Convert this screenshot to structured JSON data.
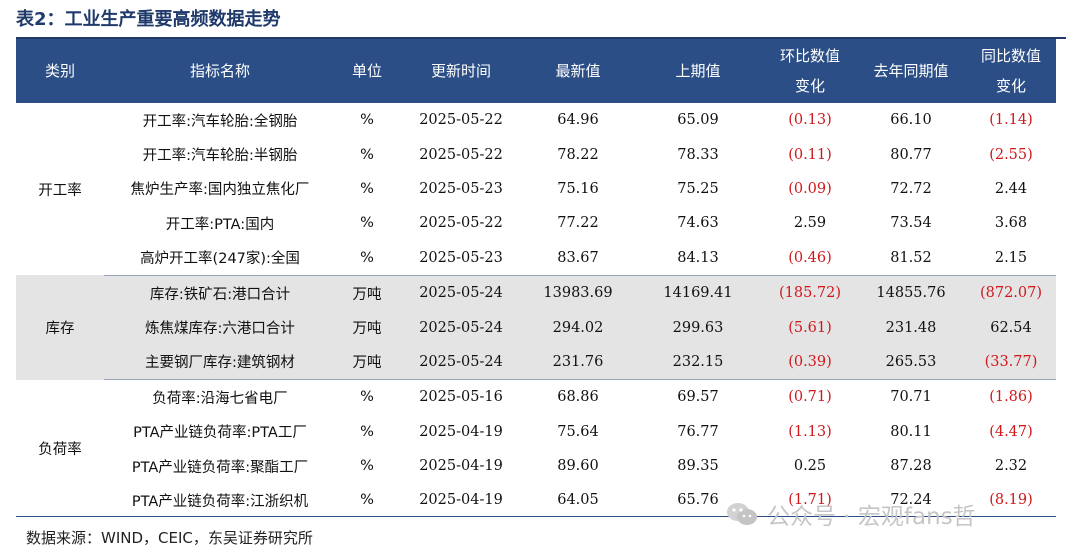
{
  "title": "表2：工业生产重要高频数据走势",
  "headers": {
    "category": "类别",
    "indicator": "指标名称",
    "unit": "单位",
    "update_time": "更新时间",
    "latest": "最新值",
    "previous": "上期值",
    "mom_change_line1": "环比数值",
    "mom_change_line2": "变化",
    "last_year": "去年同期值",
    "yoy_change_line1": "同比数值",
    "yoy_change_line2": "变化"
  },
  "groups": [
    {
      "category": "开工率",
      "shaded": false,
      "rows": [
        {
          "indicator": "开工率:汽车轮胎:全钢胎",
          "unit": "%",
          "date": "2025-05-22",
          "latest": "64.96",
          "previous": "65.09",
          "mom": "(0.13)",
          "mom_neg": true,
          "last_year": "66.10",
          "yoy": "(1.14)",
          "yoy_neg": true
        },
        {
          "indicator": "开工率:汽车轮胎:半钢胎",
          "unit": "%",
          "date": "2025-05-22",
          "latest": "78.22",
          "previous": "78.33",
          "mom": "(0.11)",
          "mom_neg": true,
          "last_year": "80.77",
          "yoy": "(2.55)",
          "yoy_neg": true
        },
        {
          "indicator": "焦炉生产率:国内独立焦化厂",
          "unit": "%",
          "date": "2025-05-23",
          "latest": "75.16",
          "previous": "75.25",
          "mom": "(0.09)",
          "mom_neg": true,
          "last_year": "72.72",
          "yoy": "2.44",
          "yoy_neg": false
        },
        {
          "indicator": "开工率:PTA:国内",
          "unit": "%",
          "date": "2025-05-22",
          "latest": "77.22",
          "previous": "74.63",
          "mom": "2.59",
          "mom_neg": false,
          "last_year": "73.54",
          "yoy": "3.68",
          "yoy_neg": false
        },
        {
          "indicator": "高炉开工率(247家):全国",
          "unit": "%",
          "date": "2025-05-23",
          "latest": "83.67",
          "previous": "84.13",
          "mom": "(0.46)",
          "mom_neg": true,
          "last_year": "81.52",
          "yoy": "2.15",
          "yoy_neg": false
        }
      ]
    },
    {
      "category": "库存",
      "shaded": true,
      "rows": [
        {
          "indicator": "库存:铁矿石:港口合计",
          "unit": "万吨",
          "date": "2025-05-24",
          "latest": "13983.69",
          "previous": "14169.41",
          "mom": "(185.72)",
          "mom_neg": true,
          "last_year": "14855.76",
          "yoy": "(872.07)",
          "yoy_neg": true
        },
        {
          "indicator": "炼焦煤库存:六港口合计",
          "unit": "万吨",
          "date": "2025-05-24",
          "latest": "294.02",
          "previous": "299.63",
          "mom": "(5.61)",
          "mom_neg": true,
          "last_year": "231.48",
          "yoy": "62.54",
          "yoy_neg": false
        },
        {
          "indicator": "主要钢厂库存:建筑钢材",
          "unit": "万吨",
          "date": "2025-05-24",
          "latest": "231.76",
          "previous": "232.15",
          "mom": "(0.39)",
          "mom_neg": true,
          "last_year": "265.53",
          "yoy": "(33.77)",
          "yoy_neg": true
        }
      ]
    },
    {
      "category": "负荷率",
      "shaded": false,
      "rows": [
        {
          "indicator": "负荷率:沿海七省电厂",
          "unit": "%",
          "date": "2025-05-16",
          "latest": "68.86",
          "previous": "69.57",
          "mom": "(0.71)",
          "mom_neg": true,
          "last_year": "70.71",
          "yoy": "(1.86)",
          "yoy_neg": true
        },
        {
          "indicator": "PTA产业链负荷率:PTA工厂",
          "unit": "%",
          "date": "2025-04-19",
          "latest": "75.64",
          "previous": "76.77",
          "mom": "(1.13)",
          "mom_neg": true,
          "last_year": "80.11",
          "yoy": "(4.47)",
          "yoy_neg": true
        },
        {
          "indicator": "PTA产业链负荷率:聚酯工厂",
          "unit": "%",
          "date": "2025-04-19",
          "latest": "89.60",
          "previous": "89.35",
          "mom": "0.25",
          "mom_neg": false,
          "last_year": "87.28",
          "yoy": "2.32",
          "yoy_neg": false
        },
        {
          "indicator": "PTA产业链负荷率:江浙织机",
          "unit": "%",
          "date": "2025-04-19",
          "latest": "64.05",
          "previous": "65.76",
          "mom": "(1.71)",
          "mom_neg": true,
          "last_year": "72.24",
          "yoy": "(8.19)",
          "yoy_neg": true
        }
      ]
    }
  ],
  "source": "数据来源：WIND，CEIC，东吴证券研究所",
  "watermark": "公众号 · 宏观fans哲"
}
